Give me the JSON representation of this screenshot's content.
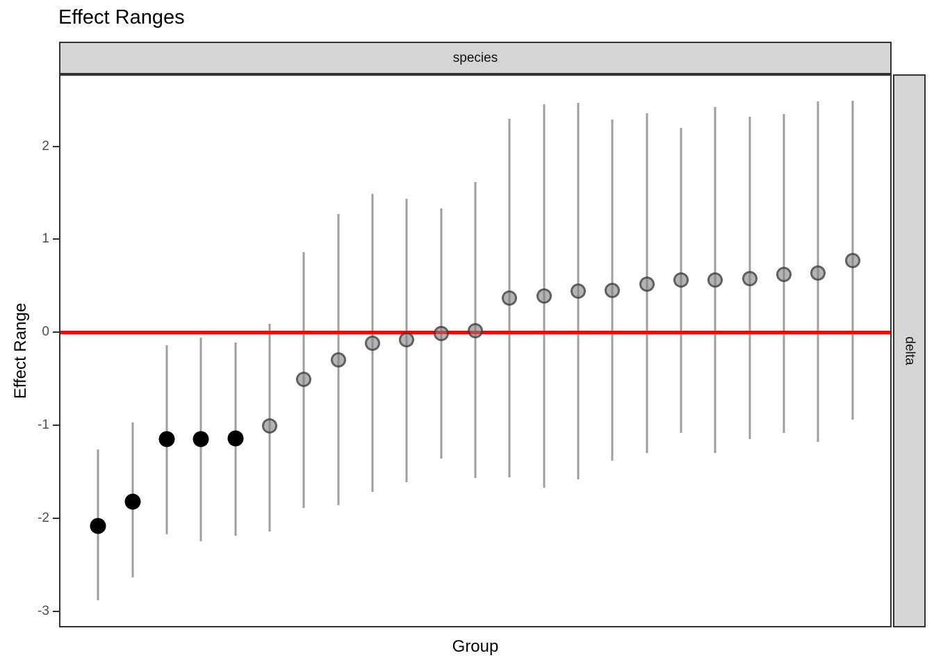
{
  "chart_data": {
    "type": "pointrange",
    "title": "Effect Ranges",
    "facet_top": "species",
    "facet_right": "delta",
    "xlabel": "Group",
    "ylabel": "Effect Range",
    "xlim": [
      -0.1,
      24.1
    ],
    "ylim": [
      -3.16,
      2.76
    ],
    "yticks": [
      2,
      1,
      0,
      -1,
      -2,
      -3
    ],
    "grid": "off",
    "x_tick_labels": "none",
    "refline": {
      "y": 0,
      "color": "#FF0000"
    },
    "colors": {
      "significant_point": "#000000",
      "nonsignificant_point": "#808080",
      "error_bar": "#9E9E9E",
      "strip_fill": "#D5D5D5",
      "strip_border": "#333333"
    },
    "points": [
      {
        "x": 1,
        "y": -2.08,
        "lo": -2.88,
        "hi": -1.26,
        "sig": true
      },
      {
        "x": 2,
        "y": -1.82,
        "lo": -2.64,
        "hi": -0.97,
        "sig": true
      },
      {
        "x": 3,
        "y": -1.15,
        "lo": -2.17,
        "hi": -0.14,
        "sig": true
      },
      {
        "x": 4,
        "y": -1.15,
        "lo": -2.25,
        "hi": -0.06,
        "sig": true
      },
      {
        "x": 5,
        "y": -1.14,
        "lo": -2.19,
        "hi": -0.11,
        "sig": true
      },
      {
        "x": 6,
        "y": -1.01,
        "lo": -2.14,
        "hi": 0.09,
        "sig": false
      },
      {
        "x": 7,
        "y": -0.51,
        "lo": -1.89,
        "hi": 0.86,
        "sig": false
      },
      {
        "x": 8,
        "y": -0.3,
        "lo": -1.86,
        "hi": 1.27,
        "sig": false
      },
      {
        "x": 9,
        "y": -0.12,
        "lo": -1.72,
        "hi": 1.49,
        "sig": false
      },
      {
        "x": 10,
        "y": -0.08,
        "lo": -1.61,
        "hi": 1.44,
        "sig": false
      },
      {
        "x": 11,
        "y": -0.01,
        "lo": -1.36,
        "hi": 1.33,
        "sig": false
      },
      {
        "x": 12,
        "y": 0.02,
        "lo": -1.57,
        "hi": 1.62,
        "sig": false
      },
      {
        "x": 13,
        "y": 0.37,
        "lo": -1.56,
        "hi": 2.3,
        "sig": false
      },
      {
        "x": 14,
        "y": 0.39,
        "lo": -1.67,
        "hi": 2.45,
        "sig": false
      },
      {
        "x": 15,
        "y": 0.44,
        "lo": -1.58,
        "hi": 2.47,
        "sig": false
      },
      {
        "x": 16,
        "y": 0.45,
        "lo": -1.38,
        "hi": 2.29,
        "sig": false
      },
      {
        "x": 17,
        "y": 0.52,
        "lo": -1.3,
        "hi": 2.36,
        "sig": false
      },
      {
        "x": 18,
        "y": 0.56,
        "lo": -1.08,
        "hi": 2.2,
        "sig": false
      },
      {
        "x": 19,
        "y": 0.56,
        "lo": -1.3,
        "hi": 2.42,
        "sig": false
      },
      {
        "x": 20,
        "y": 0.58,
        "lo": -1.15,
        "hi": 2.32,
        "sig": false
      },
      {
        "x": 21,
        "y": 0.62,
        "lo": -1.08,
        "hi": 2.35,
        "sig": false
      },
      {
        "x": 22,
        "y": 0.64,
        "lo": -1.18,
        "hi": 2.48,
        "sig": false
      },
      {
        "x": 23,
        "y": 0.77,
        "lo": -0.94,
        "hi": 2.49,
        "sig": false
      }
    ]
  }
}
